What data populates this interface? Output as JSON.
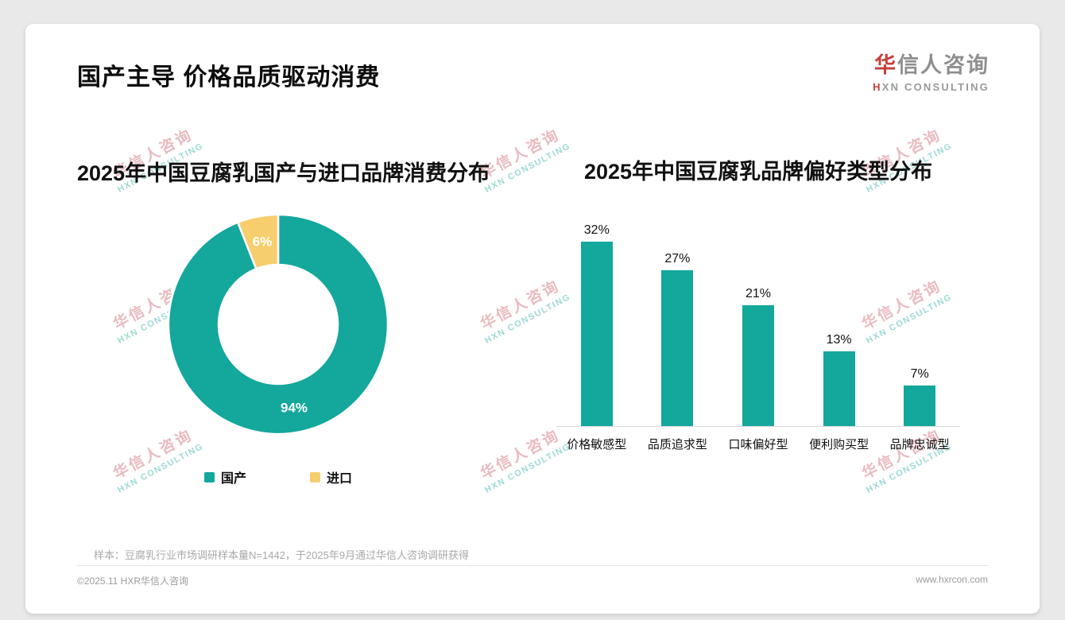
{
  "page": {
    "title": "国产主导 价格品质驱动消费",
    "logo": {
      "name": "华信人咨询",
      "tagline": "HXN CONSULTING"
    },
    "watermark": {
      "line1": "华信人咨询",
      "line2": "HXN CONSULTING"
    },
    "footnote": "样本：豆腐乳行业市场调研样本量N=1442，于2025年9月通过华信人咨询调研获得",
    "footer": {
      "left": "©2025.11 HXR华信人咨询",
      "right": "www.hxrcon.com"
    }
  },
  "colors": {
    "teal": "#14A79C",
    "yellow": "#F7CE6E"
  },
  "chart_data": [
    {
      "type": "pie",
      "donut": true,
      "title": "2025年中国豆腐乳国产与进口品牌消费分布",
      "labels": [
        "国产",
        "进口"
      ],
      "values": [
        94,
        6
      ],
      "unit": "%",
      "colors": [
        "#14A79C",
        "#F7CE6E"
      ],
      "start_angle_deg": 0,
      "direction": "clockwise",
      "legend_position": "bottom"
    },
    {
      "type": "bar",
      "title": "2025年中国豆腐乳品牌偏好类型分布",
      "categories": [
        "价格敏感型",
        "品质追求型",
        "口味偏好型",
        "便利购买型",
        "品牌忠诚型"
      ],
      "values": [
        32,
        27,
        21,
        13,
        7
      ],
      "unit": "%",
      "bar_color": "#14A79C",
      "ylim": [
        0,
        35
      ],
      "grid": false,
      "value_labels": true
    }
  ]
}
